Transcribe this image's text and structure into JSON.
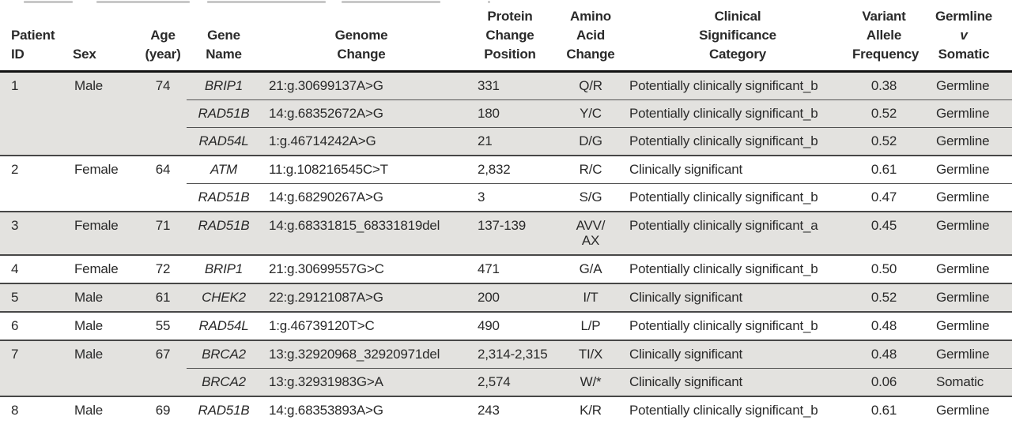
{
  "colors": {
    "row_shade": "#e3e2df",
    "group_rule": "#474747",
    "header_rule": "#111111",
    "text": "#2a2a2a"
  },
  "table": {
    "headers": {
      "patient_id": "Patient\nID",
      "sex": "Sex",
      "age": "Age\n(year)",
      "gene": "Gene\nName",
      "genome_change": "Genome\nChange",
      "protein_change_position": "Protein\nChange\nPosition",
      "amino_acid_change": "Amino\nAcid\nChange",
      "clinical_significance": "Clinical\nSignificance\nCategory",
      "vaf": "Variant\nAllele\nFrequency",
      "germline_header": {
        "l1": "Germline",
        "l2": "v",
        "l3": "Somatic"
      }
    },
    "patients": [
      {
        "id": "1",
        "sex": "Male",
        "age": "74",
        "variants": [
          {
            "gene": "BRIP1",
            "genome_change": "21:g.30699137A>G",
            "protein_change_position": "331",
            "amino_acid_change": "Q/R",
            "clinical_significance": "Potentially clinically significant_b",
            "vaf": "0.38",
            "germline_v_somatic": "Germline"
          },
          {
            "gene": "RAD51B",
            "genome_change": "14:g.68352672A>G",
            "protein_change_position": "180",
            "amino_acid_change": "Y/C",
            "clinical_significance": "Potentially clinically significant_b",
            "vaf": "0.52",
            "germline_v_somatic": "Germline"
          },
          {
            "gene": "RAD54L",
            "genome_change": "1:g.46714242A>G",
            "protein_change_position": "21",
            "amino_acid_change": "D/G",
            "clinical_significance": "Potentially clinically significant_b",
            "vaf": "0.52",
            "germline_v_somatic": "Germline"
          }
        ]
      },
      {
        "id": "2",
        "sex": "Female",
        "age": "64",
        "variants": [
          {
            "gene": "ATM",
            "genome_change": "11:g.108216545C>T",
            "protein_change_position": "2,832",
            "amino_acid_change": "R/C",
            "clinical_significance": "Clinically significant",
            "vaf": "0.61",
            "germline_v_somatic": "Germline"
          },
          {
            "gene": "RAD51B",
            "genome_change": "14:g.68290267A>G",
            "protein_change_position": "3",
            "amino_acid_change": "S/G",
            "clinical_significance": "Potentially clinically significant_b",
            "vaf": "0.47",
            "germline_v_somatic": "Germline"
          }
        ]
      },
      {
        "id": "3",
        "sex": "Female",
        "age": "71",
        "variants": [
          {
            "gene": "RAD51B",
            "genome_change": "14:g.68331815_68331819del",
            "protein_change_position": "137-139",
            "amino_acid_change": "AVV/\nAX",
            "clinical_significance": "Potentially clinically significant_a",
            "vaf": "0.45",
            "germline_v_somatic": "Germline"
          }
        ]
      },
      {
        "id": "4",
        "sex": "Female",
        "age": "72",
        "variants": [
          {
            "gene": "BRIP1",
            "genome_change": "21:g.30699557G>C",
            "protein_change_position": "471",
            "amino_acid_change": "G/A",
            "clinical_significance": "Potentially clinically significant_b",
            "vaf": "0.50",
            "germline_v_somatic": "Germline"
          }
        ]
      },
      {
        "id": "5",
        "sex": "Male",
        "age": "61",
        "variants": [
          {
            "gene": "CHEK2",
            "genome_change": "22:g.29121087A>G",
            "protein_change_position": "200",
            "amino_acid_change": "I/T",
            "clinical_significance": "Clinically significant",
            "vaf": "0.52",
            "germline_v_somatic": "Germline"
          }
        ]
      },
      {
        "id": "6",
        "sex": "Male",
        "age": "55",
        "variants": [
          {
            "gene": "RAD54L",
            "genome_change": "1:g.46739120T>C",
            "protein_change_position": "490",
            "amino_acid_change": "L/P",
            "clinical_significance": "Potentially clinically significant_b",
            "vaf": "0.48",
            "germline_v_somatic": "Germline"
          }
        ]
      },
      {
        "id": "7",
        "sex": "Male",
        "age": "67",
        "variants": [
          {
            "gene": "BRCA2",
            "genome_change": "13:g.32920968_32920971del",
            "protein_change_position": "2,314-2,315",
            "amino_acid_change": "TI/X",
            "clinical_significance": "Clinically significant",
            "vaf": "0.48",
            "germline_v_somatic": "Germline"
          },
          {
            "gene": "BRCA2",
            "genome_change": "13:g.32931983G>A",
            "protein_change_position": "2,574",
            "amino_acid_change": "W/*",
            "clinical_significance": "Clinically significant",
            "vaf": "0.06",
            "germline_v_somatic": "Somatic"
          }
        ]
      },
      {
        "id": "8",
        "sex": "Male",
        "age": "69",
        "variants": [
          {
            "gene": "RAD51B",
            "genome_change": "14:g.68353893A>G",
            "protein_change_position": "243",
            "amino_acid_change": "K/R",
            "clinical_significance": "Potentially clinically significant_b",
            "vaf": "0.61",
            "germline_v_somatic": "Germline"
          }
        ]
      }
    ]
  }
}
